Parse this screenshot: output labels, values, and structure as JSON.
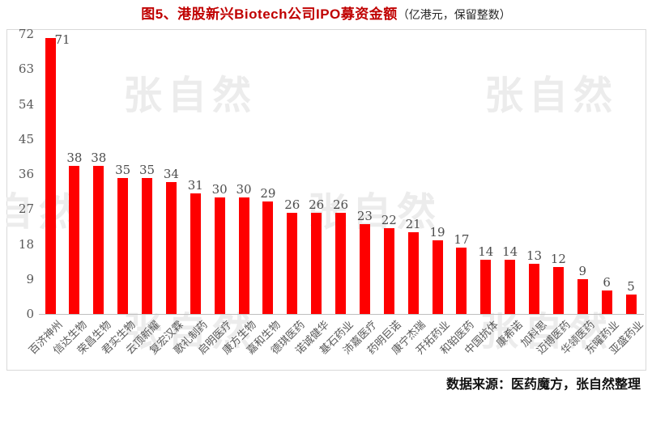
{
  "title": {
    "main": "图5、港股新兴Biotech公司IPO募资金额",
    "note": "（亿港元，保留整数）"
  },
  "watermark": {
    "text": "张自然"
  },
  "footer": {
    "source": "数据来源：医药魔方，张自然整理"
  },
  "colors": {
    "bar": "#fe0000",
    "title": "#c00000",
    "axis_text": "#595959",
    "value_text": "#4d4d4d",
    "watermark": "#ececec",
    "frame_border": "#d9d9d9",
    "baseline": "#bfbfbf"
  },
  "chart_data": {
    "type": "bar",
    "title": "图5、港股新兴Biotech公司IPO募资金额",
    "subtitle": "（亿港元，保留整数）",
    "xlabel": "",
    "ylabel": "",
    "categories": [
      "百济神州",
      "信达生物",
      "荣昌生物",
      "君实生物",
      "云顶新耀",
      "复宏汉霖",
      "歌礼制药",
      "启明医疗",
      "康方生物",
      "嘉和生物",
      "德琪医药",
      "诺诚健华",
      "基石药业",
      "沛嘉医疗",
      "药明巨诺",
      "康宁杰瑞",
      "开拓药业",
      "和铂医药",
      "中国抗体",
      "康希诺",
      "加科思",
      "迈博医药",
      "华领医药",
      "东曜药业",
      "亚盛药业"
    ],
    "values": [
      71,
      38,
      38,
      35,
      35,
      34,
      31,
      30,
      30,
      29,
      26,
      26,
      26,
      23,
      22,
      21,
      19,
      17,
      14,
      14,
      13,
      12,
      9,
      6,
      5
    ],
    "ylim": [
      0,
      72
    ],
    "yticks": [
      0,
      9,
      18,
      27,
      36,
      45,
      54,
      63,
      72
    ],
    "grid": false,
    "legend": false,
    "data_labels": true,
    "bar_color": "#fe0000",
    "x_label_rotation_deg": 45,
    "source_note": "数据来源：医药魔方，张自然整理"
  }
}
